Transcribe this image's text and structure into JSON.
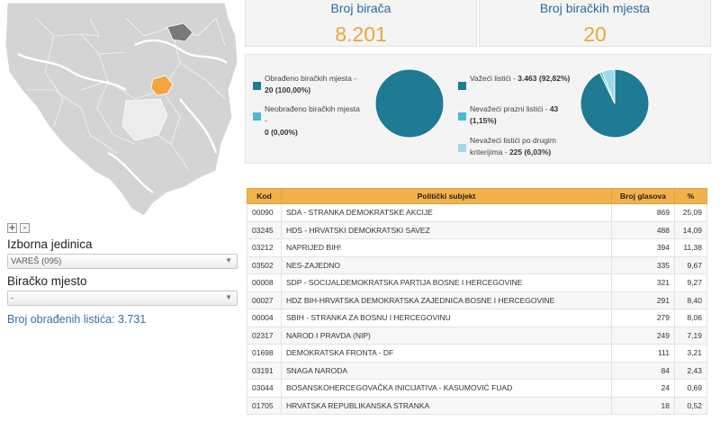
{
  "left": {
    "zoom_in": "+",
    "zoom_out": "-",
    "electoral_unit_label": "Izborna jedinica",
    "electoral_unit_value": "VAREŠ (095)",
    "polling_station_label": "Biračko mjesto",
    "polling_station_value": "-",
    "processed_ballots": "Broj obrađenih listića: 3.731"
  },
  "stats": {
    "voters_title": "Broj birača",
    "voters_value": "8.201",
    "stations_title": "Broj biračkih mjesta",
    "stations_value": "20"
  },
  "pie1": {
    "legend": [
      {
        "label": "Obrađeno biračkih mjesta -",
        "value": "20 (100,00%)",
        "color": "#1f7a93"
      },
      {
        "label": "Neobrađeno biračkih mjesta -",
        "value": "0 (0,00%)",
        "color": "#4bb8d6"
      }
    ],
    "fractions": [
      1.0,
      0.0
    ]
  },
  "pie2": {
    "legend": [
      {
        "label": "Važeći listići -",
        "value": "3.463 (92,82%)",
        "color": "#1f7a93"
      },
      {
        "label": "Nevažeći prazni listići -",
        "value": "43 (1,15%)",
        "color": "#4bb8d6"
      },
      {
        "label": "Nevažeći listići po drugim kriterijima -",
        "value": "225 (6,03%)",
        "color": "#9fd9ea"
      }
    ],
    "fractions": [
      0.9282,
      0.0115,
      0.0603
    ]
  },
  "table": {
    "headers": [
      "Kod",
      "Politički subjekt",
      "Broj glasova",
      "%"
    ],
    "rows": [
      {
        "kod": "00090",
        "subject": "SDA - STRANKA DEMOKRATSKE AKCIJE",
        "votes": "869",
        "pct": "25,09"
      },
      {
        "kod": "03245",
        "subject": "HDS - HRVATSKI DEMOKRATSKI SAVEZ",
        "votes": "488",
        "pct": "14,09"
      },
      {
        "kod": "03212",
        "subject": "NAPRIJED BIH!",
        "votes": "394",
        "pct": "11,38"
      },
      {
        "kod": "03502",
        "subject": "NES-ZAJEDNO",
        "votes": "335",
        "pct": "9,67"
      },
      {
        "kod": "00008",
        "subject": "SDP - SOCIJALDEMOKRATSKA PARTIJA BOSNE I HERCEGOVINE",
        "votes": "321",
        "pct": "9,27"
      },
      {
        "kod": "00027",
        "subject": "HDZ BIH-HRVATSKA DEMOKRATSKA ZAJEDNICA BOSNE I HERCEGOVINE",
        "votes": "291",
        "pct": "8,40"
      },
      {
        "kod": "00004",
        "subject": "SBIH - STRANKA ZA BOSNU I HERCEGOVINU",
        "votes": "279",
        "pct": "8,06"
      },
      {
        "kod": "02317",
        "subject": "NAROD I PRAVDA (NIP)",
        "votes": "249",
        "pct": "7,19"
      },
      {
        "kod": "01698",
        "subject": "DEMOKRATSKA FRONTA - DF",
        "votes": "111",
        "pct": "3,21"
      },
      {
        "kod": "03191",
        "subject": "SNAGA NARODA",
        "votes": "84",
        "pct": "2,43"
      },
      {
        "kod": "03044",
        "subject": "BOSANSKOHERCEGOVAČKA INICIJATIVA - KASUMOVIĆ FUAD",
        "votes": "24",
        "pct": "0,69"
      },
      {
        "kod": "01705",
        "subject": "HRVATSKA REPUBLIKANSKA STRANKA",
        "votes": "18",
        "pct": "0,52"
      }
    ]
  }
}
